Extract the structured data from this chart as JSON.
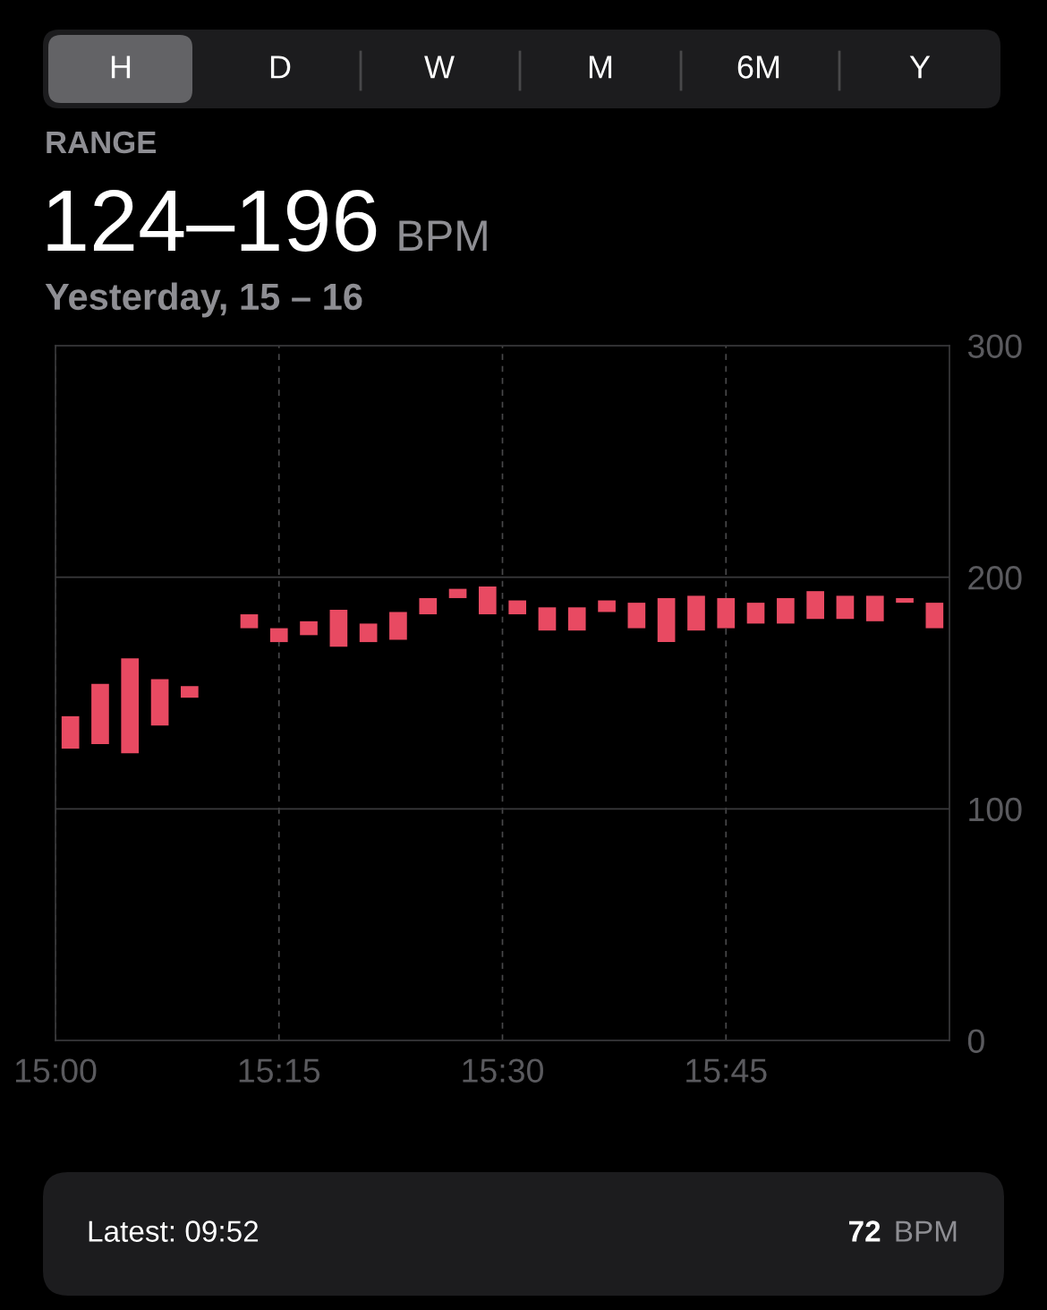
{
  "chart_data": {
    "type": "bar",
    "x": [
      15.0167,
      15.05,
      15.0833,
      15.1167,
      15.15,
      15.2167,
      15.25,
      15.2833,
      15.3167,
      15.35,
      15.3833,
      15.4167,
      15.45,
      15.4833,
      15.5167,
      15.55,
      15.5833,
      15.6167,
      15.65,
      15.6833,
      15.7167,
      15.75,
      15.7833,
      15.8167,
      15.85,
      15.8833,
      15.9167,
      15.95,
      15.9833
    ],
    "base": [
      126,
      128,
      124,
      136,
      148,
      178,
      172,
      175,
      170,
      172,
      173,
      184,
      191,
      184,
      184,
      177,
      177,
      185,
      178,
      172,
      177,
      178,
      180,
      180,
      182,
      182,
      181,
      189,
      178
    ],
    "values": [
      14,
      26,
      41,
      20,
      5,
      6,
      6,
      6,
      16,
      8,
      12,
      7,
      4,
      12,
      6,
      10,
      10,
      5,
      11,
      19,
      15,
      13,
      9,
      11,
      12,
      10,
      11,
      2,
      11
    ],
    "color": "#e84a62",
    "xlim": [
      15,
      16
    ],
    "xticks": [
      {
        "value": 15,
        "label": "15:00"
      },
      {
        "value": 15.25,
        "label": "15:15"
      },
      {
        "value": 15.5,
        "label": "15:30"
      },
      {
        "value": 15.75,
        "label": "15:45"
      }
    ],
    "ylim": [
      0,
      300
    ],
    "yticks": [
      0,
      100,
      200,
      300
    ],
    "grid": true,
    "annotations": [
      "H",
      "D",
      "W",
      "M",
      "6M",
      "Y",
      "RANGE",
      "124–196",
      "BPM",
      "Yesterday, 15 – 16",
      "Latest: 09:52",
      "72",
      "BPM"
    ]
  }
}
